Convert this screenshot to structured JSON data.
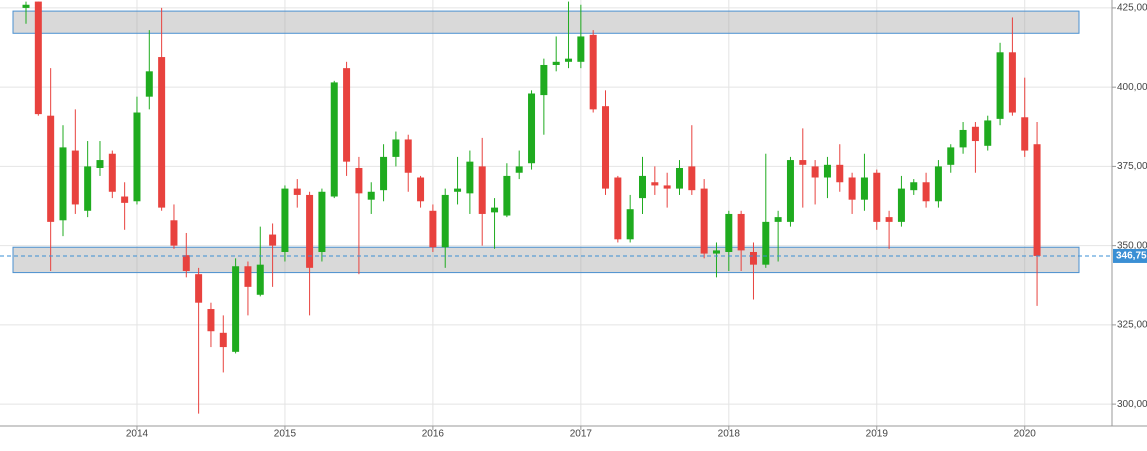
{
  "chart_data": {
    "type": "candlestick",
    "x": [
      null,
      null,
      null,
      null,
      null,
      null,
      null,
      null,
      null,
      "2014",
      null,
      null,
      null,
      null,
      null,
      null,
      null,
      null,
      null,
      null,
      null,
      "2015",
      null,
      null,
      null,
      null,
      null,
      null,
      null,
      null,
      null,
      null,
      null,
      "2016",
      null,
      null,
      null,
      null,
      null,
      null,
      null,
      null,
      null,
      null,
      null,
      "2017",
      null,
      null,
      null,
      null,
      null,
      null,
      null,
      null,
      null,
      null,
      null,
      "2018",
      null,
      null,
      null,
      null,
      null,
      null,
      null,
      null,
      null,
      null,
      null,
      "2019",
      null,
      null,
      null,
      null,
      null,
      null,
      null,
      null,
      null,
      null,
      null,
      "2020",
      null
    ],
    "open": [
      425,
      427,
      391,
      358,
      380,
      361,
      374.5,
      379,
      365.5,
      364,
      397,
      409.5,
      358,
      347,
      341,
      330,
      322.5,
      316.5,
      343.5,
      334.5,
      353.5,
      348,
      368,
      366,
      348,
      365.5,
      406,
      374.5,
      364.5,
      367.5,
      378,
      383.5,
      371.5,
      361,
      349.5,
      367,
      366.5,
      375,
      360.5,
      359.5,
      373,
      376,
      397.5,
      407,
      408,
      408,
      416.5,
      394,
      371.5,
      352,
      365,
      370,
      369,
      368,
      375,
      368,
      347.5,
      348,
      360,
      348,
      344,
      357.5,
      357.5,
      377,
      375,
      371.5,
      375.5,
      371.5,
      364.5,
      373,
      359,
      357.5,
      367.5,
      370,
      364,
      375.5,
      381,
      387.5,
      381.5,
      390,
      411,
      390.5,
      382
    ],
    "high": [
      427,
      427,
      406,
      388,
      393,
      383,
      383,
      380,
      370,
      397,
      418,
      425,
      363,
      354,
      343,
      332,
      328,
      346,
      345,
      356,
      357,
      369,
      371,
      367,
      368,
      402,
      408,
      378,
      370,
      382,
      386,
      385,
      372,
      363,
      368,
      378,
      380,
      384,
      365,
      376,
      380,
      399,
      409,
      416,
      427,
      426,
      418,
      399,
      372,
      366,
      378,
      375,
      373,
      377,
      388,
      371,
      351,
      361,
      361,
      351,
      379,
      361,
      378,
      387,
      377,
      378,
      382,
      373,
      379,
      374,
      361,
      372,
      371,
      373,
      377,
      382,
      389,
      389,
      391,
      414,
      422,
      403,
      389
    ],
    "low": [
      420,
      391,
      342,
      353,
      360,
      359,
      372,
      365,
      355,
      363,
      393,
      361,
      349,
      340,
      297,
      318,
      310,
      316,
      328,
      334,
      337,
      345,
      362,
      328,
      345,
      365,
      372,
      341,
      360,
      364,
      375,
      367,
      362,
      348,
      343,
      363,
      360,
      350,
      349,
      359,
      371,
      374,
      385,
      405,
      406,
      406,
      392,
      366,
      351,
      351,
      360,
      366,
      362,
      366,
      366,
      346,
      340,
      342,
      342,
      333,
      343,
      345,
      356,
      362,
      363,
      365,
      367,
      360,
      361,
      355,
      349,
      356,
      366,
      362,
      362,
      373,
      379,
      373,
      380,
      388,
      391,
      378,
      331
    ],
    "close": [
      426,
      391.5,
      357.5,
      381,
      363,
      375,
      377,
      367,
      363.5,
      392,
      405,
      362,
      350,
      342,
      332,
      323,
      318,
      343.5,
      337,
      344,
      350,
      368,
      366,
      343,
      367,
      401.5,
      376.5,
      366.5,
      367,
      378,
      383.5,
      373,
      364,
      349.5,
      366,
      368,
      376.5,
      360,
      362,
      372,
      375,
      398,
      407,
      408,
      409,
      416,
      393,
      368,
      352,
      361.5,
      372,
      369,
      368,
      374.5,
      367.5,
      347.5,
      348.5,
      360,
      348.5,
      344,
      357.5,
      359,
      377,
      375.5,
      371.5,
      375.5,
      370,
      364.5,
      371.5,
      357.5,
      357.5,
      368,
      370,
      364,
      375,
      381,
      386.5,
      383,
      389.5,
      411,
      392,
      380,
      346.75
    ],
    "up_color": "#1fab1f",
    "down_color": "#e8423e",
    "zones": [
      [
        417,
        424
      ],
      [
        341.5,
        349.5
      ]
    ],
    "last": {
      "value": 346.75,
      "label": "346,75"
    },
    "ylim": [
      293.1,
      427.5
    ],
    "yticks": [
      {
        "value": 300,
        "label": "300,00"
      },
      {
        "value": 325,
        "label": "325,00"
      },
      {
        "value": 350,
        "label": "350,00"
      },
      {
        "value": 375,
        "label": "375,00"
      },
      {
        "value": 400,
        "label": "400,00"
      },
      {
        "value": 425,
        "label": "425,00"
      }
    ],
    "grid": true
  }
}
